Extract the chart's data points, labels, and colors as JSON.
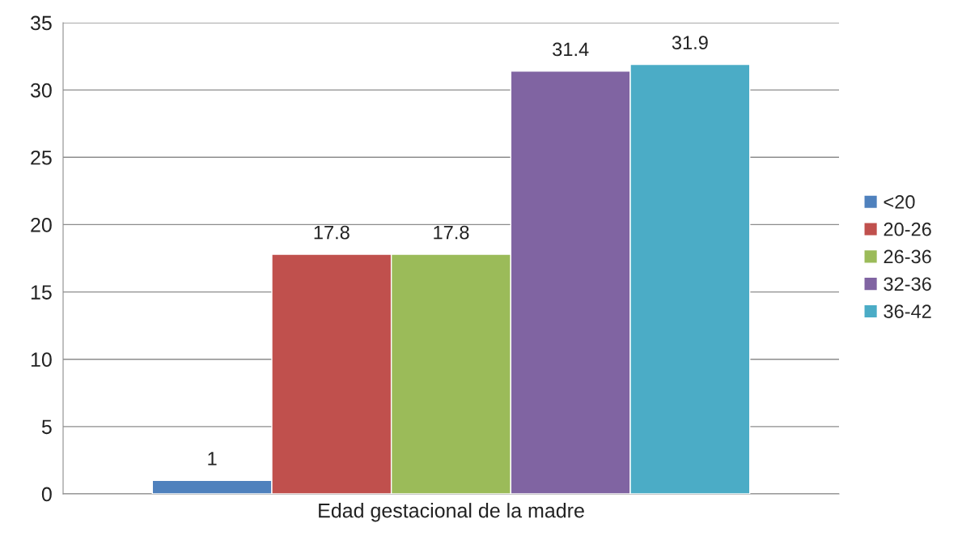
{
  "chart_data": {
    "type": "bar",
    "categories": [
      "Edad gestacional de la madre"
    ],
    "series": [
      {
        "name": "<20",
        "color": "#4f81bd",
        "values": [
          1
        ]
      },
      {
        "name": "20-26",
        "color": "#c0504d",
        "values": [
          17.8
        ]
      },
      {
        "name": "26-36",
        "color": "#9bbb59",
        "values": [
          17.8
        ]
      },
      {
        "name": "32-36",
        "color": "#8064a2",
        "values": [
          31.4
        ]
      },
      {
        "name": "36-42",
        "color": "#4bacc6",
        "values": [
          31.9
        ]
      }
    ],
    "ylim": [
      0,
      35
    ],
    "yticks": [
      0,
      5,
      10,
      15,
      20,
      25,
      30,
      35
    ],
    "grid": "y",
    "legend": "right",
    "data_labels": true
  }
}
